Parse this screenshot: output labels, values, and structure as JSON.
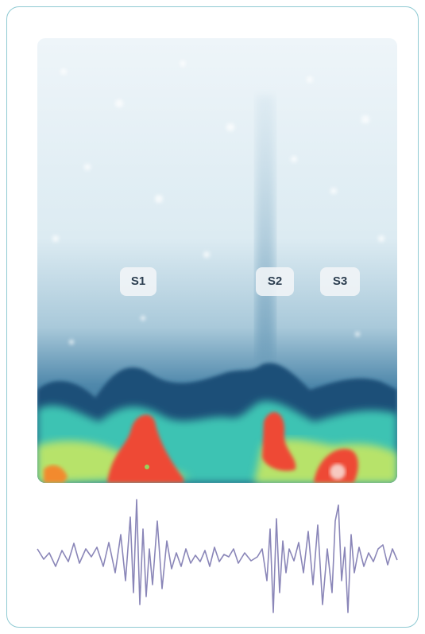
{
  "markers": [
    {
      "label": "S1"
    },
    {
      "label": "S2"
    },
    {
      "label": "S3"
    }
  ]
}
